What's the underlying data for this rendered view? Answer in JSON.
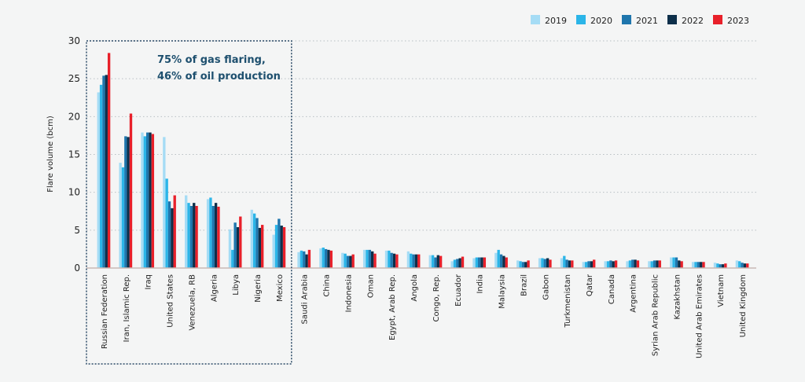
{
  "chart_data": {
    "type": "bar",
    "title": "",
    "xlabel": "",
    "ylabel": "Flare volume (bcm)",
    "ylim": [
      0,
      30
    ],
    "yticks": [
      0,
      5,
      10,
      15,
      20,
      25,
      30
    ],
    "grid": true,
    "legend_position": "top-right",
    "annotation": [
      "75% of gas flaring,",
      "46% of oil production"
    ],
    "highlight_group_size": 9,
    "categories": [
      "Russian Federation",
      "Iran, Islamic Rep.",
      "Iraq",
      "United States",
      "Venezuela, RB",
      "Algeria",
      "Libya",
      "Nigeria",
      "Mexico",
      "Saudi Arabia",
      "China",
      "Indonesia",
      "Oman",
      "Egypt, Arab Rep.",
      "Angola",
      "Congo, Rep.",
      "Ecuador",
      "India",
      "Malaysia",
      "Brazil",
      "Gabon",
      "Turkmenistan",
      "Qatar",
      "Canada",
      "Argentina",
      "Syrian Arab Republic",
      "Kazakhstan",
      "United Arab Emirates",
      "Vietnam",
      "United Kingdom"
    ],
    "series": [
      {
        "name": "2019",
        "color": "#a5dcf5",
        "values": [
          23.2,
          13.9,
          17.9,
          17.3,
          9.6,
          9.1,
          5.1,
          7.7,
          4.4,
          2.1,
          2.6,
          2.0,
          2.4,
          2.3,
          2.2,
          1.7,
          0.9,
          1.3,
          2.0,
          1.0,
          1.3,
          1.3,
          0.8,
          0.9,
          0.9,
          0.9,
          1.4,
          0.8,
          0.7,
          1.0
        ]
      },
      {
        "name": "2020",
        "color": "#2bb5e8",
        "values": [
          24.2,
          13.3,
          17.4,
          11.8,
          8.6,
          9.3,
          2.4,
          7.2,
          5.7,
          2.3,
          2.7,
          1.9,
          2.4,
          2.3,
          1.9,
          1.7,
          1.1,
          1.4,
          2.4,
          0.9,
          1.3,
          1.6,
          0.8,
          0.9,
          1.0,
          0.9,
          1.4,
          0.8,
          0.6,
          0.9
        ]
      },
      {
        "name": "2021",
        "color": "#1f76ad",
        "values": [
          25.4,
          17.4,
          17.9,
          8.8,
          8.2,
          8.2,
          6.0,
          6.6,
          6.5,
          2.2,
          2.5,
          1.6,
          2.4,
          2.0,
          1.8,
          1.4,
          1.2,
          1.4,
          1.8,
          0.8,
          1.2,
          1.1,
          0.9,
          1.0,
          1.1,
          1.0,
          1.4,
          0.8,
          0.5,
          0.7
        ]
      },
      {
        "name": "2022",
        "color": "#0d2f4a",
        "values": [
          25.5,
          17.3,
          17.9,
          7.9,
          8.6,
          8.6,
          5.4,
          5.3,
          5.6,
          1.8,
          2.4,
          1.6,
          2.2,
          1.9,
          1.8,
          1.7,
          1.3,
          1.4,
          1.6,
          0.8,
          1.3,
          1.0,
          0.9,
          0.9,
          1.1,
          1.0,
          1.0,
          0.8,
          0.5,
          0.6
        ]
      },
      {
        "name": "2023",
        "color": "#e8202a",
        "values": [
          28.4,
          20.4,
          17.7,
          9.6,
          8.2,
          8.1,
          6.8,
          5.7,
          5.4,
          2.4,
          2.3,
          1.8,
          1.9,
          1.8,
          1.8,
          1.6,
          1.5,
          1.4,
          1.4,
          1.0,
          1.1,
          1.0,
          1.1,
          1.0,
          1.0,
          1.0,
          0.9,
          0.8,
          0.6,
          0.6
        ]
      }
    ]
  }
}
